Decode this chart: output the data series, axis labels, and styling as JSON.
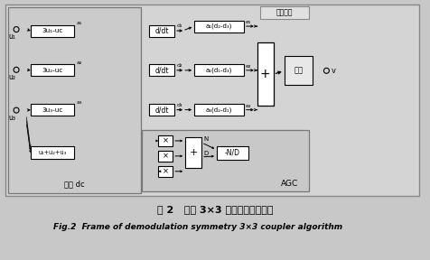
{
  "title_cn": "图 2   对称 3×3 耦合解调算法框图",
  "title_en": "Fig.2  Frame of demodulation symmetry 3×3 coupler algorithm",
  "bg_color": "#c8c8c8",
  "input_labels": [
    "u₁",
    "u₂",
    "u₃"
  ],
  "subtract_labels": [
    "3u₁-uc",
    "3u₂-uc",
    "3u₃-uc"
  ],
  "diff_labels": [
    "d/dt",
    "d/dt",
    "d/dt"
  ],
  "core_labels": [
    "a₁(d₂-d₃)",
    "a₂(d₁-d₃)",
    "a₃(d₂-d₁)"
  ],
  "integral_label": "积分",
  "core_demod_label": "核心解调",
  "dc_remove_label": "去除 dc",
  "sum_input_label": "u₁+u₂+u₃",
  "agc_label": "AGC",
  "ndiv_label": "-N/D",
  "output_label": "v",
  "e_labels": [
    "e₁",
    "e₂",
    "e₃"
  ],
  "a_labels": [
    "a₁",
    "a₂",
    "a₃"
  ],
  "d_labels": [
    "d₁",
    "d₂",
    "d₃"
  ],
  "n_label": "N",
  "d_label": "D",
  "plus_label": "+",
  "mult_label": "×",
  "div_label": "÷"
}
